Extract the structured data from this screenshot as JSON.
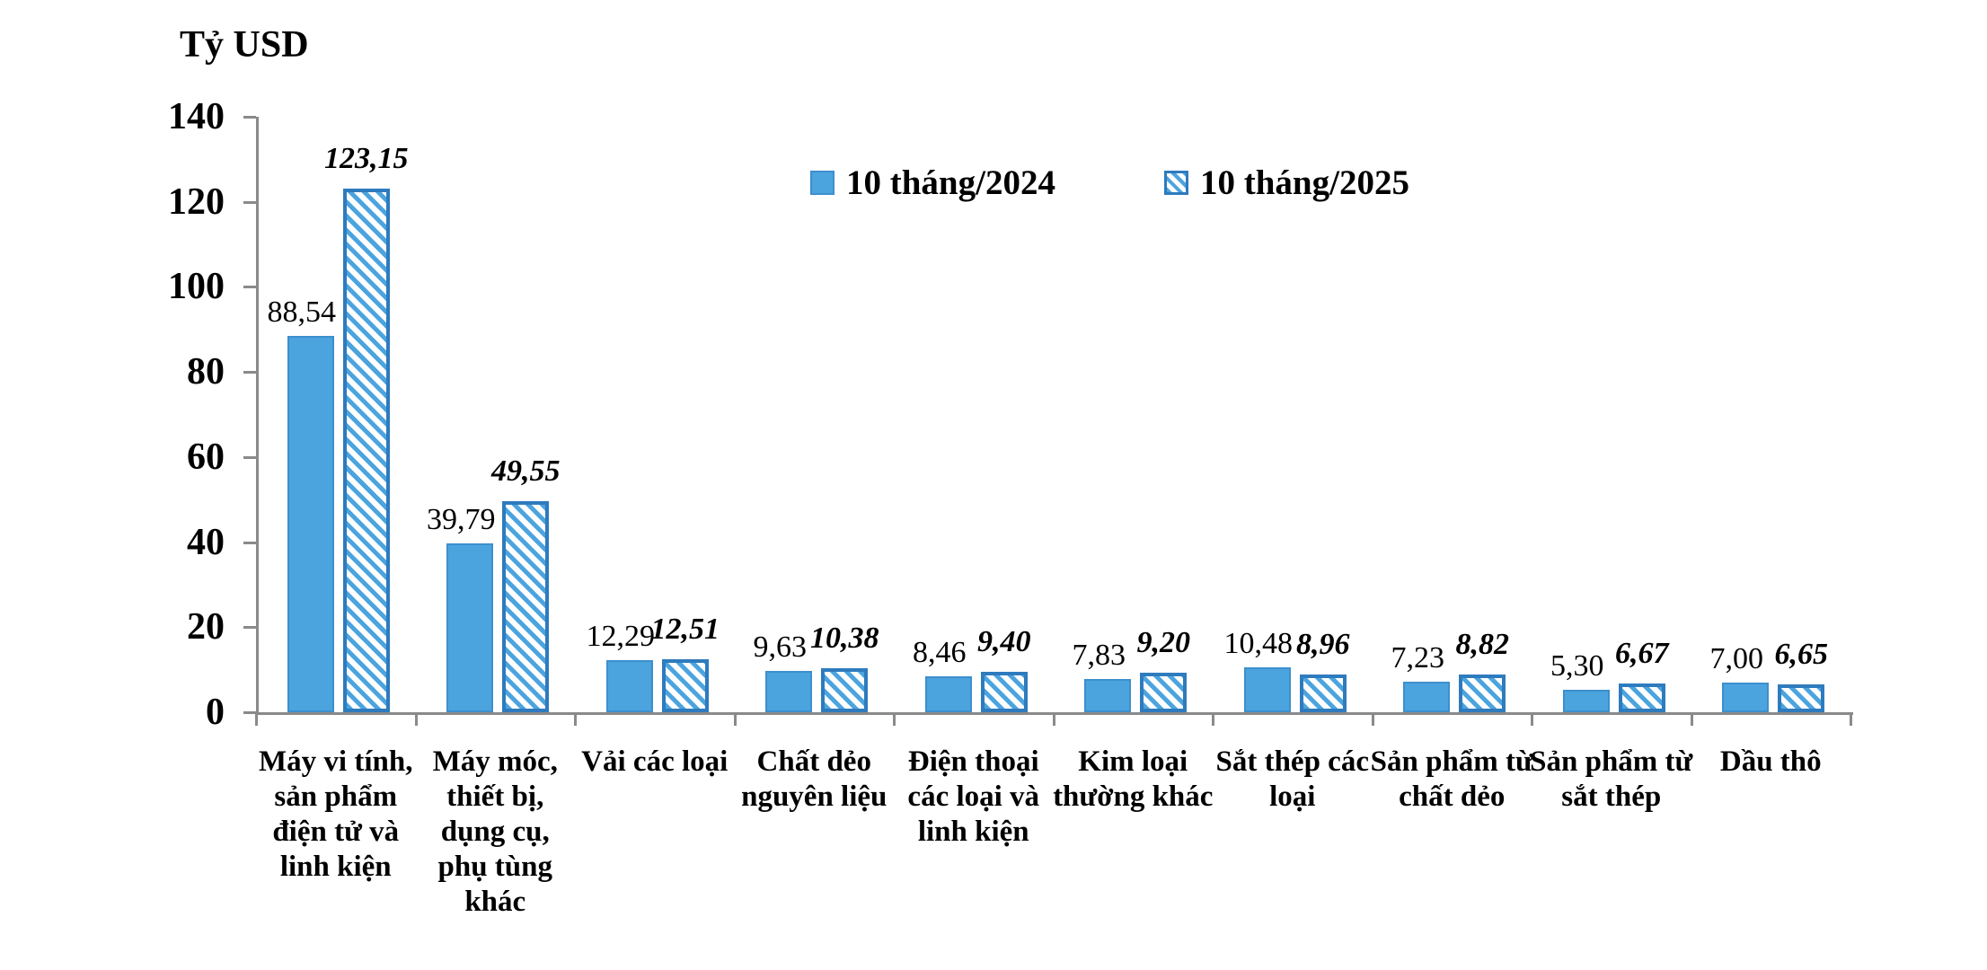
{
  "chart_data": {
    "type": "bar",
    "title": "Tỷ USD",
    "xlabel": "",
    "ylabel": "Tỷ USD",
    "ylim": [
      0,
      140
    ],
    "yticks": [
      "0",
      "20",
      "40",
      "60",
      "80",
      "100",
      "120",
      "140"
    ],
    "grid": false,
    "legend_position": "top-center",
    "categories": [
      "Máy vi tính, sản phẩm điện tử và linh kiện",
      "Máy móc, thiết bị, dụng cụ, phụ tùng khác",
      "Vải các loại",
      "Chất dẻo nguyên liệu",
      "Điện thoại các loại và linh kiện",
      "Kim loại thường khác",
      "Sắt thép các loại",
      "Sản phẩm từ chất dẻo",
      "Sản phẩm từ sắt thép",
      "Dầu thô"
    ],
    "series": [
      {
        "name": "10 tháng/2024",
        "style": "solid",
        "values": [
          88.54,
          39.79,
          12.29,
          9.63,
          8.46,
          7.83,
          10.48,
          7.23,
          5.3,
          7.0
        ],
        "labels": [
          "88,54",
          "39,79",
          "12,29",
          "9,63",
          "8,46",
          "7,83",
          "10,48",
          "7,23",
          "5,30",
          "7,00"
        ]
      },
      {
        "name": "10 tháng/2025",
        "style": "hatched",
        "values": [
          123.15,
          49.55,
          12.51,
          10.38,
          9.4,
          9.2,
          8.96,
          8.82,
          6.67,
          6.65
        ],
        "labels": [
          "123,15",
          "49,55",
          "12,51",
          "10,38",
          "9,40",
          "9,20",
          "8,96",
          "8,82",
          "6,67",
          "6,65"
        ]
      }
    ],
    "colors": {
      "bar_fill": "#4ca4df",
      "bar_border": "#2e7bbe",
      "hatch_stripe": "#4ca4df",
      "axis": "#8a8a8a",
      "text": "#000000"
    }
  }
}
